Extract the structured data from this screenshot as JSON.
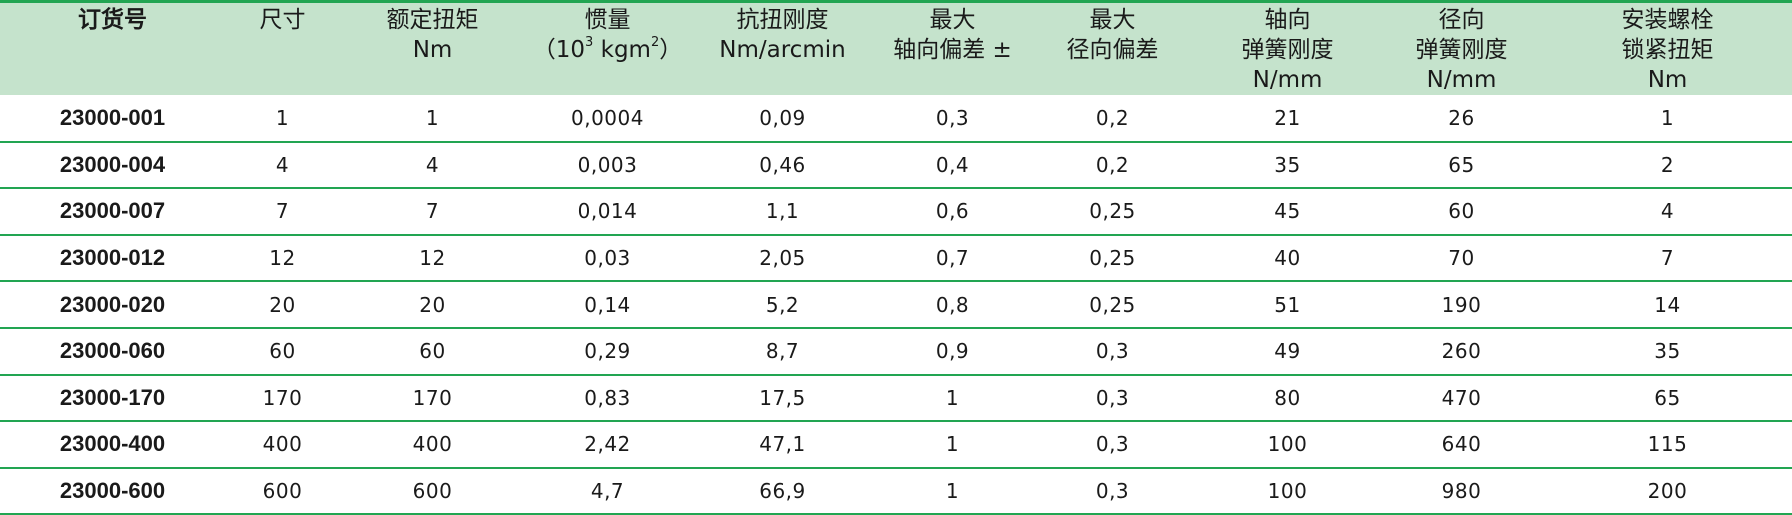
{
  "headers": [
    {
      "lines": [
        "订货号"
      ]
    },
    {
      "lines": [
        "尺寸"
      ]
    },
    {
      "lines": [
        "额定扭矩",
        "Nm"
      ]
    },
    {
      "lines": [
        "惯量"
      ],
      "unit": {
        "pre": "（10",
        "sup1": "3",
        "mid": " kgm",
        "sup2": "2",
        "post": "）"
      }
    },
    {
      "lines": [
        "抗扭刚度",
        "Nm/arcmin"
      ]
    },
    {
      "lines": [
        "最大",
        "轴向偏差 ±"
      ]
    },
    {
      "lines": [
        "最大",
        "径向偏差"
      ]
    },
    {
      "lines": [
        "轴向",
        "弹簧刚度",
        "N/mm"
      ]
    },
    {
      "lines": [
        "径向",
        "弹簧刚度",
        "N/mm"
      ]
    },
    {
      "lines": [
        "安装螺栓",
        "锁紧扭矩",
        "Nm"
      ]
    }
  ],
  "rows": [
    [
      "23000-001",
      "1",
      "1",
      "0,0004",
      "0,09",
      "0,3",
      "0,2",
      "21",
      "26",
      "1"
    ],
    [
      "23000-004",
      "4",
      "4",
      "0,003",
      "0,46",
      "0,4",
      "0,2",
      "35",
      "65",
      "2"
    ],
    [
      "23000-007",
      "7",
      "7",
      "0,014",
      "1,1",
      "0,6",
      "0,25",
      "45",
      "60",
      "4"
    ],
    [
      "23000-012",
      "12",
      "12",
      "0,03",
      "2,05",
      "0,7",
      "0,25",
      "40",
      "70",
      "7"
    ],
    [
      "23000-020",
      "20",
      "20",
      "0,14",
      "5,2",
      "0,8",
      "0,25",
      "51",
      "190",
      "14"
    ],
    [
      "23000-060",
      "60",
      "60",
      "0,29",
      "8,7",
      "0,9",
      "0,3",
      "49",
      "260",
      "35"
    ],
    [
      "23000-170",
      "170",
      "170",
      "0,83",
      "17,5",
      "1",
      "0,3",
      "80",
      "470",
      "65"
    ],
    [
      "23000-400",
      "400",
      "400",
      "2,42",
      "47,1",
      "1",
      "0,3",
      "100",
      "640",
      "115"
    ],
    [
      "23000-600",
      "600",
      "600",
      "4,7",
      "66,9",
      "1",
      "0,3",
      "100",
      "980",
      "200"
    ]
  ],
  "colors": {
    "header_bg": "#c5e3cc",
    "rule": "#22a552"
  }
}
